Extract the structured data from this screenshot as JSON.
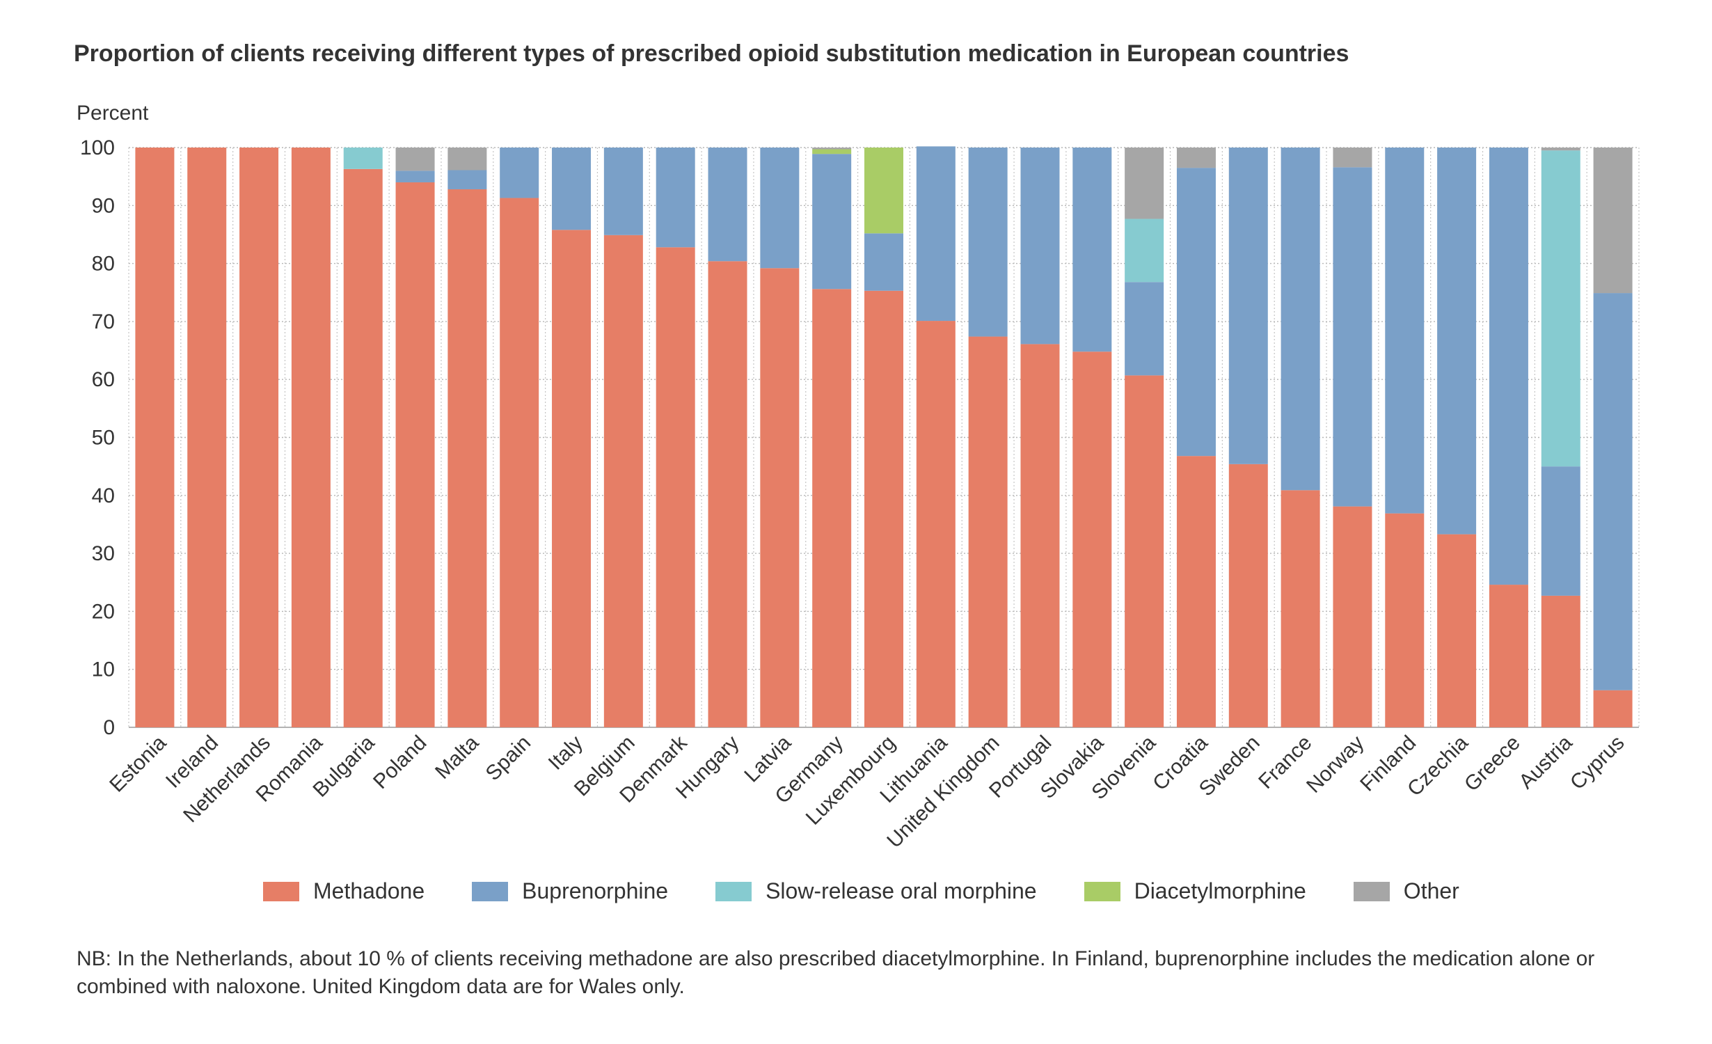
{
  "chart_data": {
    "type": "bar",
    "stacked": true,
    "title": "Proportion of clients receiving different types of prescribed opioid substitution medication in European countries",
    "ylabel": "Percent",
    "ylim": [
      0,
      100
    ],
    "yticks": [
      0,
      10,
      20,
      30,
      40,
      50,
      60,
      70,
      80,
      90,
      100
    ],
    "grid": true,
    "legend_position": "bottom",
    "categories": [
      "Estonia",
      "Ireland",
      "Netherlands",
      "Romania",
      "Bulgaria",
      "Poland",
      "Malta",
      "Spain",
      "Italy",
      "Belgium",
      "Denmark",
      "Hungary",
      "Latvia",
      "Germany",
      "Luxembourg",
      "Lithuania",
      "United Kingdom",
      "Portugal",
      "Slovakia",
      "Slovenia",
      "Croatia",
      "Sweden",
      "France",
      "Norway",
      "Finland",
      "Czechia",
      "Greece",
      "Austria",
      "Cyprus"
    ],
    "series": [
      {
        "name": "Methadone",
        "color": "#e67e66",
        "values": [
          100,
          100,
          100,
          100,
          96.3,
          94.0,
          92.8,
          91.3,
          85.8,
          84.9,
          82.8,
          80.4,
          79.2,
          75.6,
          75.3,
          70.1,
          67.4,
          66.1,
          64.8,
          60.7,
          46.8,
          45.4,
          40.9,
          38.1,
          36.9,
          33.3,
          24.6,
          22.7,
          6.4
        ]
      },
      {
        "name": "Buprenorphine",
        "color": "#7aa0c8",
        "values": [
          0,
          0,
          0,
          0,
          0,
          2.0,
          3.3,
          8.7,
          14.2,
          15.1,
          17.2,
          19.6,
          20.8,
          23.3,
          9.9,
          30.1,
          32.6,
          33.9,
          35.2,
          16.1,
          49.7,
          54.6,
          59.1,
          58.5,
          63.1,
          66.7,
          75.4,
          22.3,
          68.5
        ]
      },
      {
        "name": "Slow-release oral morphine",
        "color": "#86cbd0",
        "values": [
          0,
          0,
          0,
          0,
          3.7,
          0,
          0,
          0,
          0,
          0,
          0,
          0,
          0,
          0,
          0,
          0,
          0,
          0,
          0,
          10.9,
          0,
          0,
          0,
          0,
          0,
          0,
          0,
          54.5,
          0
        ]
      },
      {
        "name": "Diacetylmorphine",
        "color": "#a9cc66",
        "values": [
          0,
          0,
          0,
          0,
          0,
          0,
          0,
          0,
          0,
          0,
          0,
          0,
          0,
          0.8,
          14.8,
          0,
          0,
          0,
          0,
          0,
          0,
          0,
          0,
          0,
          0,
          0,
          0,
          0,
          0
        ]
      },
      {
        "name": "Other",
        "color": "#a6a6a6",
        "values": [
          0,
          0,
          0,
          0,
          0,
          4.0,
          3.9,
          0,
          0,
          0,
          0,
          0,
          0,
          0.3,
          0,
          0,
          0,
          0,
          0,
          12.3,
          3.5,
          0,
          0,
          3.4,
          0,
          0,
          0,
          0.5,
          25.1
        ]
      }
    ]
  },
  "footnote": "NB: In the Netherlands, about 10 % of clients receiving methadone are also prescribed diacetylmorphine. In Finland, buprenorphine includes the medication alone or combined with naloxone. United Kingdom data are for Wales only."
}
